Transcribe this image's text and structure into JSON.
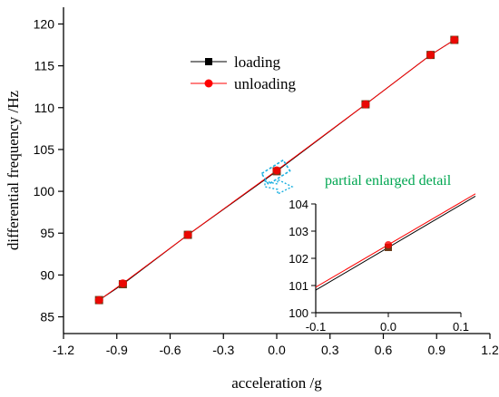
{
  "chart_data": {
    "type": "line",
    "xlabel": "acceleration /g",
    "ylabel": "differential frequency /Hz",
    "xlim": [
      -1.2,
      1.2
    ],
    "ylim": [
      83,
      122
    ],
    "xticks": [
      "-1.2",
      "-0.9",
      "-0.6",
      "-0.3",
      "0.0",
      "0.3",
      "0.6",
      "0.9",
      "1.2"
    ],
    "yticks": [
      "85",
      "90",
      "95",
      "100",
      "105",
      "110",
      "115",
      "120"
    ],
    "x": [
      -1.0,
      -0.866,
      -0.5,
      0.0,
      0.5,
      0.866,
      1.0
    ],
    "series": [
      {
        "name": "loading",
        "marker": "square",
        "color": "#000000",
        "values": [
          87.0,
          88.9,
          94.8,
          102.4,
          110.4,
          116.3,
          118.1
        ]
      },
      {
        "name": "unloading",
        "marker": "circle",
        "color": "#ff0000",
        "values": [
          87.0,
          89.0,
          94.8,
          102.5,
          110.4,
          116.3,
          118.1
        ]
      }
    ],
    "legend_position": "top-center",
    "grid": false,
    "annotation": {
      "text": "partial enlarged detail",
      "color": "#00a651"
    },
    "inset": {
      "xlim": [
        -0.1,
        0.1
      ],
      "ylim": [
        100,
        104
      ],
      "xticks": [
        "-0.1",
        "0.0",
        "0.1"
      ],
      "yticks": [
        "100",
        "101",
        "102",
        "103",
        "104"
      ],
      "highlight_color": "#1ab0e0"
    }
  }
}
